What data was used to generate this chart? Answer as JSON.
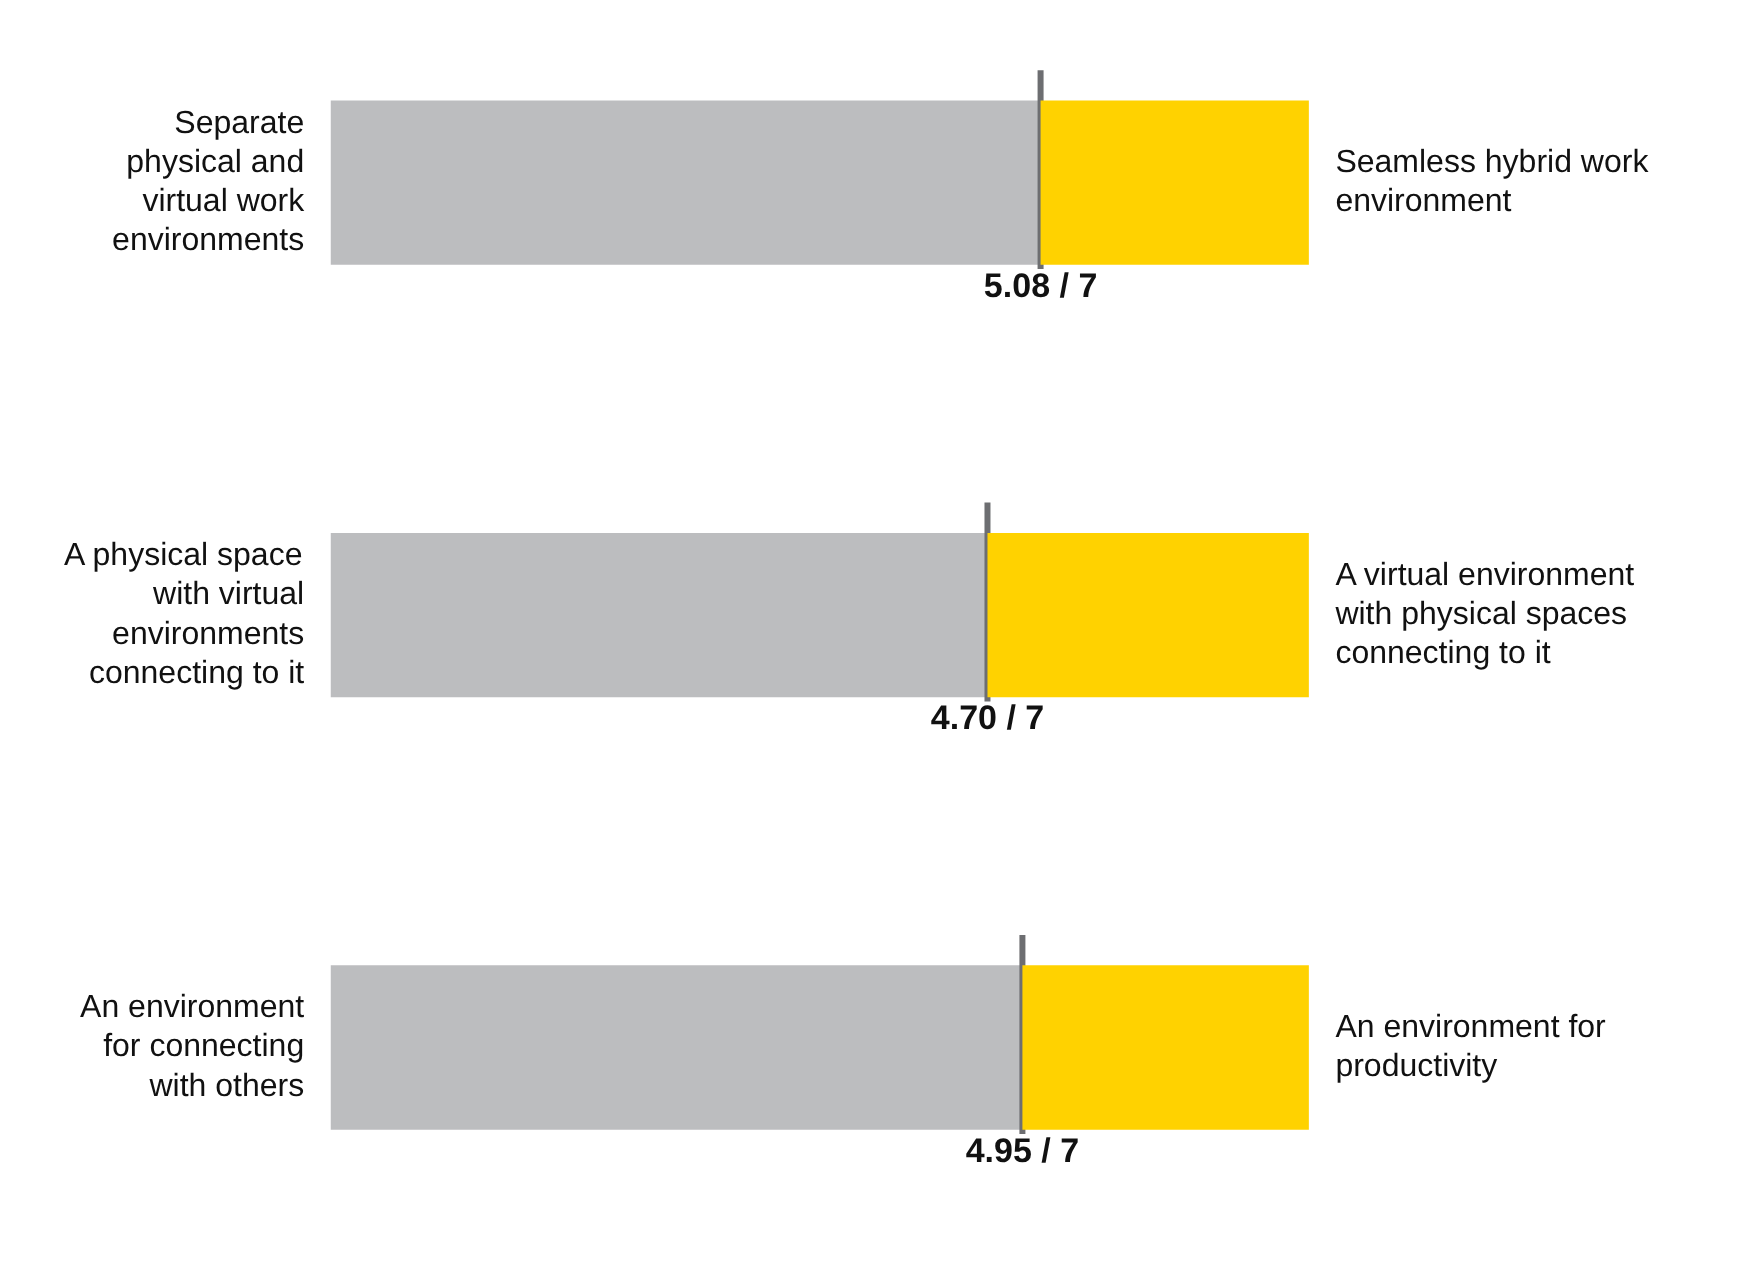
{
  "chart_data": {
    "type": "bar",
    "orientation": "horizontal",
    "stacked": true,
    "categories": [
      "Separate physical and virtual work environments",
      "A physical space with virtual environments connecting to it",
      "An environment for connecting with others"
    ],
    "series": [
      {
        "color": "#bcbdbf",
        "values": [
          5.08,
          4.7,
          4.95
        ],
        "value_labels": [
          "5.08 / 7",
          "4.70 / 7",
          "4.95 / 7"
        ]
      },
      {
        "color": "#ffd200",
        "values": [
          1.92,
          2.3,
          2.05
        ]
      }
    ],
    "annotations": [
      "Seamless hybrid work environment",
      "A virtual environment with physical spaces connecting to it",
      "An environment for productivity"
    ]
  }
}
